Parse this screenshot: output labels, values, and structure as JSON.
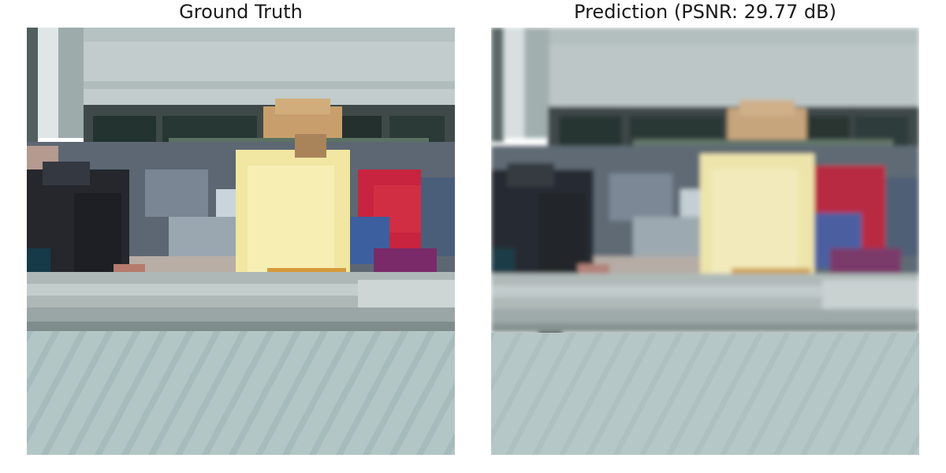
{
  "panels": [
    {
      "title": "Ground Truth"
    },
    {
      "title": "Prediction (PSNR: 29.77 dB)"
    }
  ],
  "psnr_db": 29.77
}
